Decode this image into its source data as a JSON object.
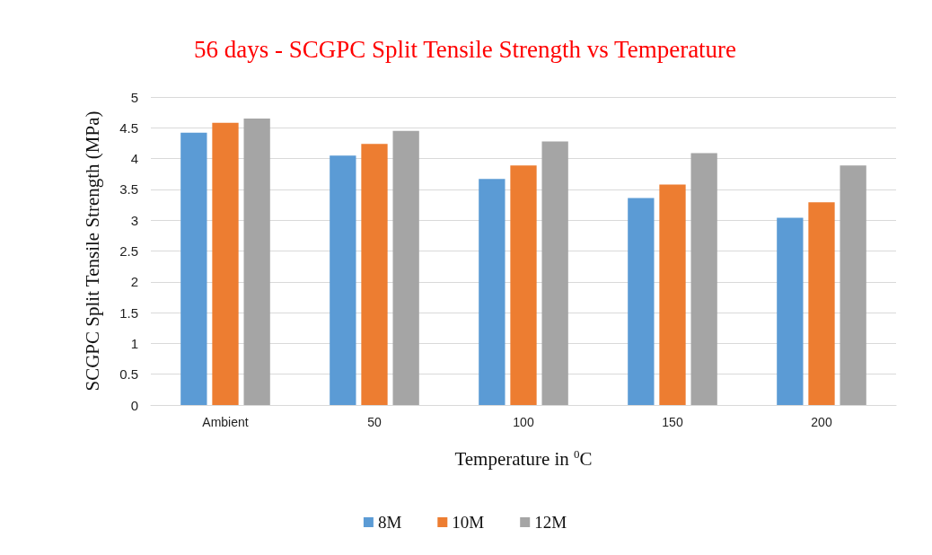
{
  "chart_data": {
    "type": "bar",
    "title": "56 days - SCGPC Split Tensile Strength vs Temperature",
    "xlabel": "Temperature in $^{0}$C",
    "ylabel": "SCGPC Split Tensile Strength (MPa)",
    "categories": [
      "Ambient",
      "50",
      "100",
      "150",
      "200"
    ],
    "series": [
      {
        "name": "8M",
        "color": "#5b9bd5",
        "values": [
          4.42,
          4.05,
          3.67,
          3.36,
          3.04
        ]
      },
      {
        "name": "10M",
        "color": "#ed7d31",
        "values": [
          4.58,
          4.24,
          3.89,
          3.58,
          3.29
        ]
      },
      {
        "name": "12M",
        "color": "#a5a5a5",
        "values": [
          4.65,
          4.45,
          4.28,
          4.09,
          3.89
        ]
      }
    ],
    "ylim": [
      0,
      5
    ],
    "yticks": [
      0,
      0.5,
      1,
      1.5,
      2,
      2.5,
      3,
      3.5,
      4,
      4.5,
      5
    ],
    "grid": "y",
    "legend": "bottom"
  }
}
